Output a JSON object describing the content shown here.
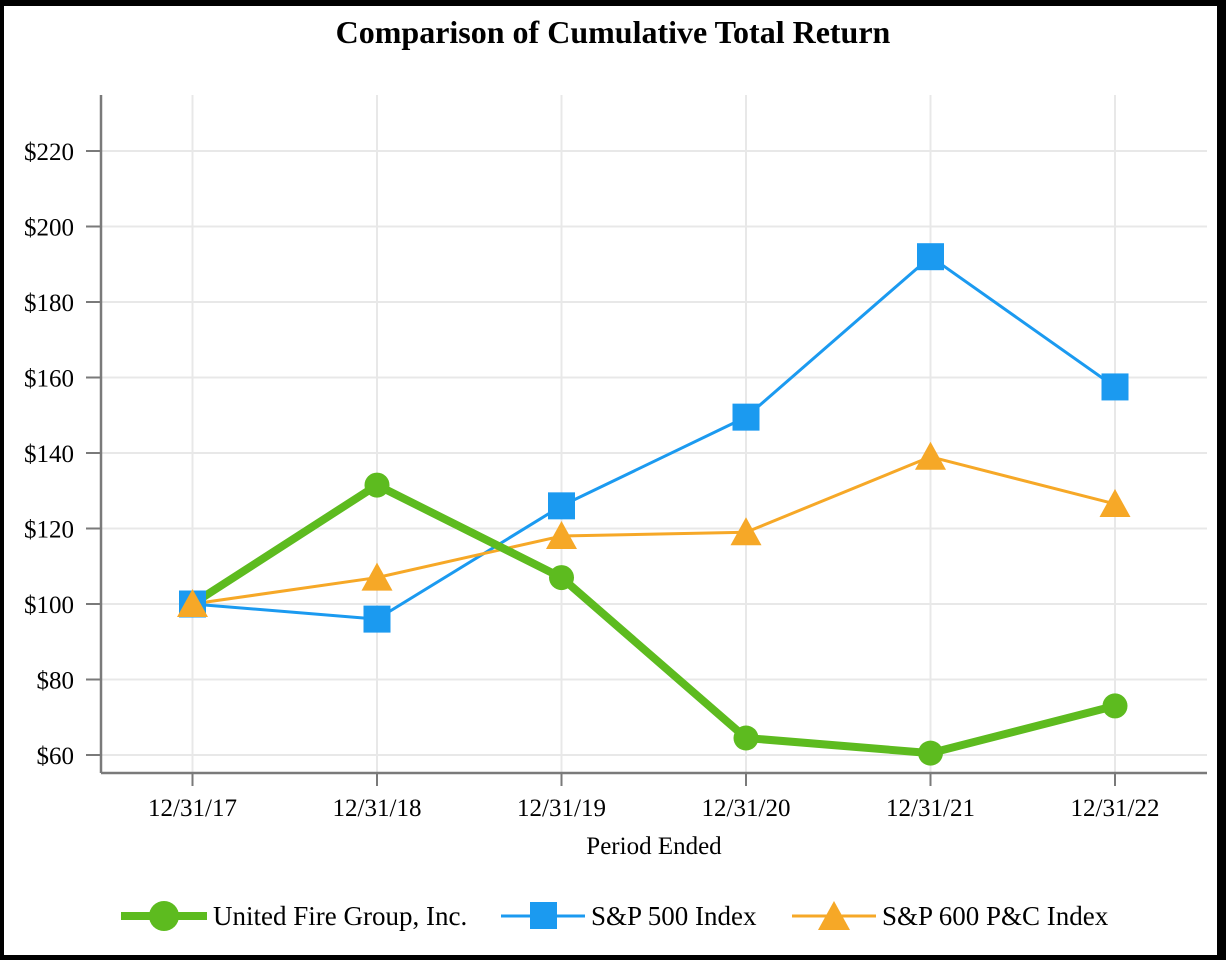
{
  "frame": {
    "background_color": "#FFFFFF",
    "border_color": "#000000"
  },
  "colors": {
    "ufg_green": "#5DBB1F",
    "sp500_blue": "#1B9AF0",
    "sp600_orange": "#F6A827",
    "gridline": "#E8E8E8",
    "axis": "#7A7A7A",
    "text": "#000000"
  },
  "chart_data": {
    "type": "line",
    "title": "Comparison of Cumulative Total Return",
    "xlabel": "Period Ended",
    "ylabel": "",
    "categories": [
      "12/31/17",
      "12/31/18",
      "12/31/19",
      "12/31/20",
      "12/31/21",
      "12/31/22"
    ],
    "y_ticks": [
      220,
      200,
      180,
      160,
      140,
      120,
      100,
      80,
      60
    ],
    "y_tick_labels": [
      "$220",
      "$200",
      "$180",
      "$160",
      "$140",
      "$120",
      "$100",
      "$80",
      "$60"
    ],
    "ylim": [
      55,
      235
    ],
    "grid": true,
    "legend_position": "bottom",
    "series": [
      {
        "name": "United Fire Group, Inc.",
        "marker": "circle",
        "color": "#5DBB1F",
        "line_width": 8,
        "values": [
          100,
          131.5,
          107,
          64.5,
          60.5,
          73
        ]
      },
      {
        "name": "S&P 500 Index",
        "marker": "square",
        "color": "#1B9AF0",
        "line_width": 3,
        "values": [
          100,
          96,
          126,
          149.5,
          192,
          157.5
        ]
      },
      {
        "name": "S&P 600 P&C Index",
        "marker": "triangle",
        "color": "#F6A827",
        "line_width": 3,
        "values": [
          100,
          107,
          118,
          119,
          139,
          126.5
        ]
      }
    ]
  }
}
